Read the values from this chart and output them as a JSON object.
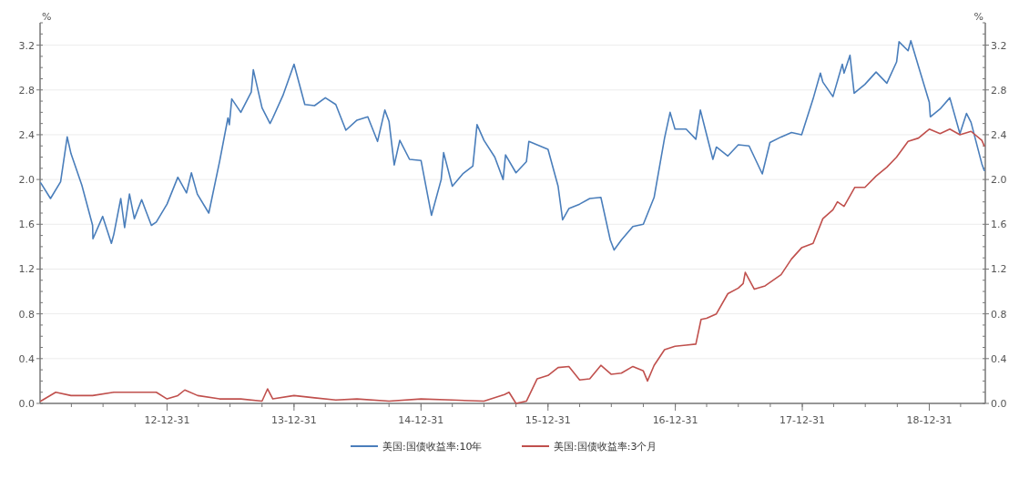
{
  "chart_data": {
    "type": "line",
    "xlim": [
      "2012-01-01",
      "2019-06-10"
    ],
    "xticks": [
      {
        "value": "2012-12-31",
        "label": "12-12-31"
      },
      {
        "value": "2013-12-31",
        "label": "13-12-31"
      },
      {
        "value": "2014-12-31",
        "label": "14-12-31"
      },
      {
        "value": "2015-12-31",
        "label": "15-12-31"
      },
      {
        "value": "2016-12-31",
        "label": "16-12-31"
      },
      {
        "value": "2017-12-31",
        "label": "17-12-31"
      },
      {
        "value": "2018-12-31",
        "label": "18-12-31"
      }
    ],
    "ylim": [
      0,
      3.4
    ],
    "yticks": [
      {
        "value": 0,
        "label": "0.0"
      },
      0.4,
      0.8,
      1.2,
      1.6,
      {
        "value": 2,
        "label": "2.0"
      },
      2.4,
      2.8,
      3.2
    ],
    "y2lim": [
      0,
      3.4
    ],
    "y2ticks": [
      {
        "value": 0,
        "label": "0.0"
      },
      0.4,
      0.8,
      1.2,
      1.6,
      {
        "value": 2,
        "label": "2.0"
      },
      2.4,
      2.8,
      3.2
    ],
    "ylabel": "%",
    "y2label": "%",
    "grid": "y",
    "legend": "bottom",
    "marker": "none",
    "line_style": "solid",
    "series": [
      {
        "name": "美国:国债收益率:10年",
        "color": "#4a7ebb",
        "x": [
          "2012-01-03",
          "2012-01-31",
          "2012-02-29",
          "2012-03-19",
          "2012-03-30",
          "2012-04-30",
          "2012-05-31",
          "2012-06-01",
          "2012-06-29",
          "2012-07-24",
          "2012-07-31",
          "2012-08-20",
          "2012-08-31",
          "2012-09-14",
          "2012-09-28",
          "2012-10-19",
          "2012-10-31",
          "2012-11-16",
          "2012-11-30",
          "2012-12-31",
          "2013-01-31",
          "2013-02-25",
          "2013-03-11",
          "2013-03-28",
          "2013-04-30",
          "2013-05-31",
          "2013-06-24",
          "2013-06-28",
          "2013-07-05",
          "2013-07-31",
          "2013-08-30",
          "2013-09-05",
          "2013-09-30",
          "2013-10-23",
          "2013-10-31",
          "2013-11-29",
          "2013-12-31",
          "2014-01-31",
          "2014-02-28",
          "2014-03-31",
          "2014-04-30",
          "2014-05-29",
          "2014-06-30",
          "2014-07-31",
          "2014-08-28",
          "2014-09-18",
          "2014-09-30",
          "2014-10-15",
          "2014-10-31",
          "2014-11-28",
          "2014-12-31",
          "2015-01-30",
          "2015-02-27",
          "2015-03-06",
          "2015-03-31",
          "2015-04-30",
          "2015-05-29",
          "2015-06-10",
          "2015-06-30",
          "2015-07-31",
          "2015-08-24",
          "2015-08-31",
          "2015-09-30",
          "2015-10-30",
          "2015-11-06",
          "2015-12-31",
          "2016-01-29",
          "2016-02-11",
          "2016-02-29",
          "2016-03-31",
          "2016-04-29",
          "2016-05-31",
          "2016-06-27",
          "2016-07-08",
          "2016-07-29",
          "2016-08-31",
          "2016-09-30",
          "2016-10-31",
          "2016-11-30",
          "2016-12-16",
          "2016-12-30",
          "2017-01-31",
          "2017-02-28",
          "2017-03-13",
          "2017-03-31",
          "2017-04-18",
          "2017-04-28",
          "2017-05-31",
          "2017-06-30",
          "2017-07-31",
          "2017-09-07",
          "2017-09-29",
          "2017-10-31",
          "2017-11-30",
          "2017-12-29",
          "2018-01-31",
          "2018-02-21",
          "2018-02-28",
          "2018-03-29",
          "2018-04-25",
          "2018-04-30",
          "2018-05-17",
          "2018-05-29",
          "2018-06-29",
          "2018-07-31",
          "2018-08-31",
          "2018-09-28",
          "2018-10-05",
          "2018-10-31",
          "2018-11-08",
          "2018-11-30",
          "2018-12-31",
          "2019-01-03",
          "2019-01-31",
          "2019-02-28",
          "2019-03-29",
          "2019-04-17",
          "2019-04-30",
          "2019-05-31",
          "2019-06-07"
        ],
        "values": [
          1.97,
          1.83,
          1.98,
          2.38,
          2.23,
          1.95,
          1.59,
          1.47,
          1.67,
          1.43,
          1.51,
          1.83,
          1.57,
          1.87,
          1.65,
          1.82,
          1.72,
          1.59,
          1.62,
          1.78,
          2.02,
          1.88,
          2.06,
          1.87,
          1.7,
          2.16,
          2.55,
          2.49,
          2.72,
          2.6,
          2.78,
          2.98,
          2.64,
          2.5,
          2.55,
          2.75,
          3.03,
          2.67,
          2.66,
          2.73,
          2.67,
          2.44,
          2.53,
          2.56,
          2.34,
          2.62,
          2.52,
          2.13,
          2.35,
          2.18,
          2.17,
          1.68,
          2.0,
          2.24,
          1.94,
          2.05,
          2.12,
          2.49,
          2.35,
          2.2,
          2.0,
          2.22,
          2.06,
          2.16,
          2.34,
          2.27,
          1.94,
          1.64,
          1.74,
          1.78,
          1.83,
          1.84,
          1.46,
          1.37,
          1.46,
          1.58,
          1.6,
          1.84,
          2.37,
          2.6,
          2.45,
          2.45,
          2.36,
          2.62,
          2.4,
          2.18,
          2.29,
          2.21,
          2.31,
          2.3,
          2.05,
          2.33,
          2.38,
          2.42,
          2.4,
          2.72,
          2.95,
          2.87,
          2.74,
          3.03,
          2.95,
          3.11,
          2.77,
          2.85,
          2.96,
          2.86,
          3.05,
          3.23,
          3.15,
          3.24,
          3.01,
          2.69,
          2.56,
          2.63,
          2.73,
          2.41,
          2.59,
          2.51,
          2.14,
          2.08
        ]
      },
      {
        "name": "美国:国债收益率:3个月",
        "color": "#c0504d",
        "x": [
          "2012-01-03",
          "2012-02-15",
          "2012-03-30",
          "2012-05-31",
          "2012-07-31",
          "2012-09-28",
          "2012-11-30",
          "2012-12-31",
          "2013-01-31",
          "2013-02-20",
          "2013-03-29",
          "2013-05-31",
          "2013-07-31",
          "2013-09-30",
          "2013-10-16",
          "2013-10-31",
          "2013-12-31",
          "2014-02-28",
          "2014-04-30",
          "2014-06-30",
          "2014-09-30",
          "2014-12-31",
          "2015-03-31",
          "2015-06-30",
          "2015-08-28",
          "2015-09-10",
          "2015-09-30",
          "2015-10-30",
          "2015-11-30",
          "2015-12-31",
          "2016-01-29",
          "2016-02-29",
          "2016-03-31",
          "2016-04-29",
          "2016-05-31",
          "2016-06-30",
          "2016-07-29",
          "2016-08-31",
          "2016-09-30",
          "2016-10-12",
          "2016-10-31",
          "2016-11-30",
          "2016-12-30",
          "2017-01-31",
          "2017-02-28",
          "2017-03-15",
          "2017-03-31",
          "2017-04-28",
          "2017-05-31",
          "2017-06-30",
          "2017-07-14",
          "2017-07-20",
          "2017-08-15",
          "2017-09-15",
          "2017-10-31",
          "2017-11-30",
          "2017-12-29",
          "2018-01-31",
          "2018-02-28",
          "2018-03-29",
          "2018-04-11",
          "2018-04-30",
          "2018-05-31",
          "2018-06-29",
          "2018-07-31",
          "2018-08-31",
          "2018-09-28",
          "2018-10-31",
          "2018-11-30",
          "2018-12-31",
          "2019-01-31",
          "2019-02-28",
          "2019-03-29",
          "2019-04-30",
          "2019-05-31",
          "2019-06-07"
        ],
        "values": [
          0.02,
          0.1,
          0.07,
          0.07,
          0.1,
          0.1,
          0.1,
          0.04,
          0.07,
          0.12,
          0.07,
          0.04,
          0.04,
          0.02,
          0.13,
          0.04,
          0.07,
          0.05,
          0.03,
          0.04,
          0.02,
          0.04,
          0.03,
          0.02,
          0.08,
          0.1,
          0.0,
          0.02,
          0.22,
          0.25,
          0.32,
          0.33,
          0.21,
          0.22,
          0.34,
          0.26,
          0.27,
          0.33,
          0.29,
          0.2,
          0.34,
          0.48,
          0.51,
          0.52,
          0.53,
          0.75,
          0.76,
          0.8,
          0.98,
          1.03,
          1.07,
          1.17,
          1.02,
          1.05,
          1.15,
          1.29,
          1.39,
          1.43,
          1.65,
          1.73,
          1.8,
          1.76,
          1.93,
          1.93,
          2.03,
          2.11,
          2.2,
          2.34,
          2.37,
          2.45,
          2.41,
          2.45,
          2.4,
          2.43,
          2.35,
          2.3
        ]
      }
    ]
  }
}
